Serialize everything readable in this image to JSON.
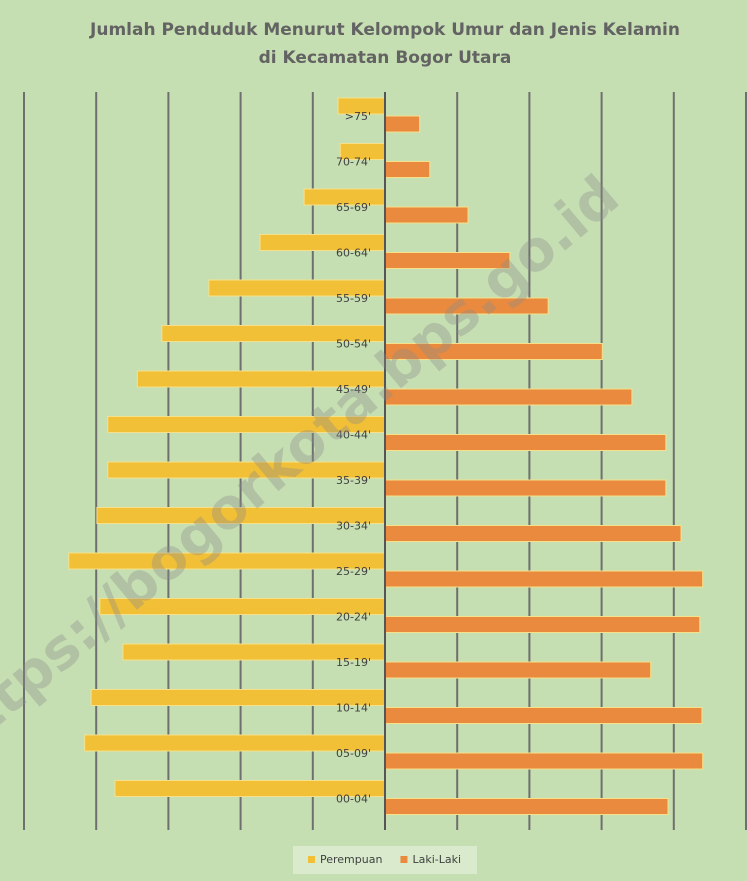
{
  "chart_data": {
    "type": "pyramid",
    "title": [
      "Jumlah Penduduk Menurut Kelompok Umur dan Jenis Kelamin",
      "di Kecamatan Bogor Utara"
    ],
    "categories": [
      ">75'",
      "70-74'",
      "65-69'",
      "60-64'",
      "55-59'",
      "50-54'",
      "45-49'",
      "40-44'",
      "35-39'",
      "30-34'",
      "25-29'",
      "20-24'",
      "15-19'",
      "10-14'",
      "05-09'",
      "00-04'"
    ],
    "series": [
      {
        "name": "Perempuan",
        "color": "#f2c037",
        "values": [
          -0.65,
          -0.62,
          -1.12,
          -1.73,
          -2.44,
          -3.09,
          -3.43,
          -3.84,
          -3.84,
          -3.99,
          -4.38,
          -3.95,
          -3.63,
          -4.07,
          -4.16,
          -3.74
        ]
      },
      {
        "name": "Laki-Laki",
        "color": "#e98a3f",
        "values": [
          0.48,
          0.62,
          1.15,
          1.73,
          2.26,
          3.01,
          3.42,
          3.89,
          3.89,
          4.1,
          4.4,
          4.36,
          3.68,
          4.39,
          4.4,
          3.92
        ]
      }
    ],
    "xlim": [
      -5,
      5
    ],
    "xticks": [
      -5,
      -4,
      -3,
      -2,
      -1,
      0,
      1,
      2,
      3,
      4,
      5
    ],
    "grid": true,
    "legend": "bottom",
    "watermark": "https://bogorkota.bps.go.id"
  }
}
